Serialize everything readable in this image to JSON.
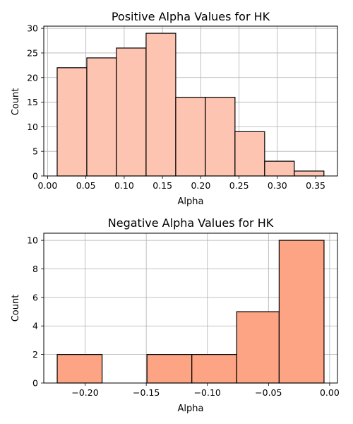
{
  "chart_data": [
    {
      "type": "bar",
      "title": "Positive Alpha Values for HK",
      "xlabel": "Alpha",
      "ylabel": "Count",
      "bin_edges": [
        0.0125,
        0.0512,
        0.0899,
        0.1286,
        0.1673,
        0.206,
        0.2447,
        0.2834,
        0.3221,
        0.3608
      ],
      "values": [
        22,
        24,
        26,
        29,
        16,
        16,
        9,
        3,
        1
      ],
      "xlim": [
        -0.005,
        0.3785
      ],
      "ylim": [
        0,
        30.45
      ],
      "xticks": [
        "0.00",
        "0.05",
        "0.10",
        "0.15",
        "0.20",
        "0.25",
        "0.30",
        "0.35"
      ],
      "yticks": [
        "0",
        "5",
        "10",
        "15",
        "20",
        "25",
        "30"
      ],
      "bar_color": "#fcc4b1",
      "edge_color": "#000000",
      "grid": true
    },
    {
      "type": "bar",
      "title": "Negative Alpha Values for HK",
      "xlabel": "Alpha",
      "ylabel": "Count",
      "bin_edges": [
        -0.2228,
        -0.1861,
        -0.1494,
        -0.1127,
        -0.076,
        -0.0413,
        -0.0046
      ],
      "values": [
        2,
        0,
        2,
        2,
        5,
        10
      ],
      "xlim": [
        -0.2338,
        0.0064
      ],
      "ylim": [
        0,
        10.5
      ],
      "xticks": [
        "−0.20",
        "−0.15",
        "−0.10",
        "−0.05",
        "0.00"
      ],
      "yticks": [
        "0",
        "2",
        "4",
        "6",
        "8",
        "10"
      ],
      "bar_color": "#fca483",
      "edge_color": "#000000",
      "grid": true
    }
  ]
}
